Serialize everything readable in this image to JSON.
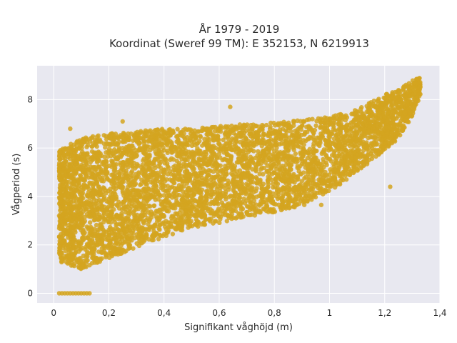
{
  "chart_data": {
    "type": "scatter",
    "title_lines": [
      "År 1979 - 2019",
      "Koordinat (Sweref 99 TM): E 352153, N 6219913"
    ],
    "xlabel": "Signifikant våghöjd (m)",
    "ylabel": "Vågperiod (s)",
    "xlim": [
      -0.06,
      1.4
    ],
    "ylim": [
      -0.4,
      9.4
    ],
    "x_ticks": [
      0,
      0.2,
      0.4,
      0.6,
      0.8,
      1,
      1.2,
      1.4
    ],
    "x_tick_labels": [
      "0",
      "0,2",
      "0,4",
      "0,6",
      "0,8",
      "1",
      "1,2",
      "1,4"
    ],
    "y_ticks": [
      0,
      2,
      4,
      6,
      8
    ],
    "y_tick_labels": [
      "0",
      "2",
      "4",
      "6",
      "8"
    ],
    "grid": true,
    "colors": {
      "marker": "#d4a420",
      "plot_bg": "#e8e8f0",
      "grid": "#ffffff"
    },
    "main_band": {
      "x": [
        0.02,
        0.1,
        0.2,
        0.3,
        0.4,
        0.5,
        0.6,
        0.7,
        0.8,
        0.9,
        1.0,
        1.1,
        1.2,
        1.25,
        1.3,
        1.33
      ],
      "y_low": [
        1.3,
        1.0,
        1.4,
        1.9,
        2.3,
        2.7,
        2.9,
        3.15,
        3.35,
        3.6,
        4.2,
        5.0,
        5.9,
        6.4,
        7.3,
        8.2
      ],
      "y_high": [
        5.9,
        6.4,
        6.6,
        6.7,
        6.8,
        6.8,
        6.9,
        7.0,
        7.05,
        7.15,
        7.3,
        7.6,
        8.2,
        8.4,
        8.8,
        8.9
      ]
    },
    "zero_period_points": {
      "x": [
        0.02,
        0.03,
        0.04,
        0.05,
        0.06,
        0.07,
        0.08,
        0.09,
        0.1,
        0.11,
        0.12,
        0.13
      ],
      "y": [
        0,
        0,
        0,
        0,
        0,
        0,
        0,
        0,
        0,
        0,
        0,
        0
      ]
    },
    "outlier_points": {
      "x": [
        0.64,
        1.22,
        0.02,
        0.89,
        0.92,
        0.97,
        0.71,
        0.81,
        0.25,
        0.06
      ],
      "y": [
        7.7,
        4.4,
        3.2,
        3.7,
        3.8,
        3.65,
        5.25,
        5.5,
        7.1,
        6.8
      ]
    }
  }
}
